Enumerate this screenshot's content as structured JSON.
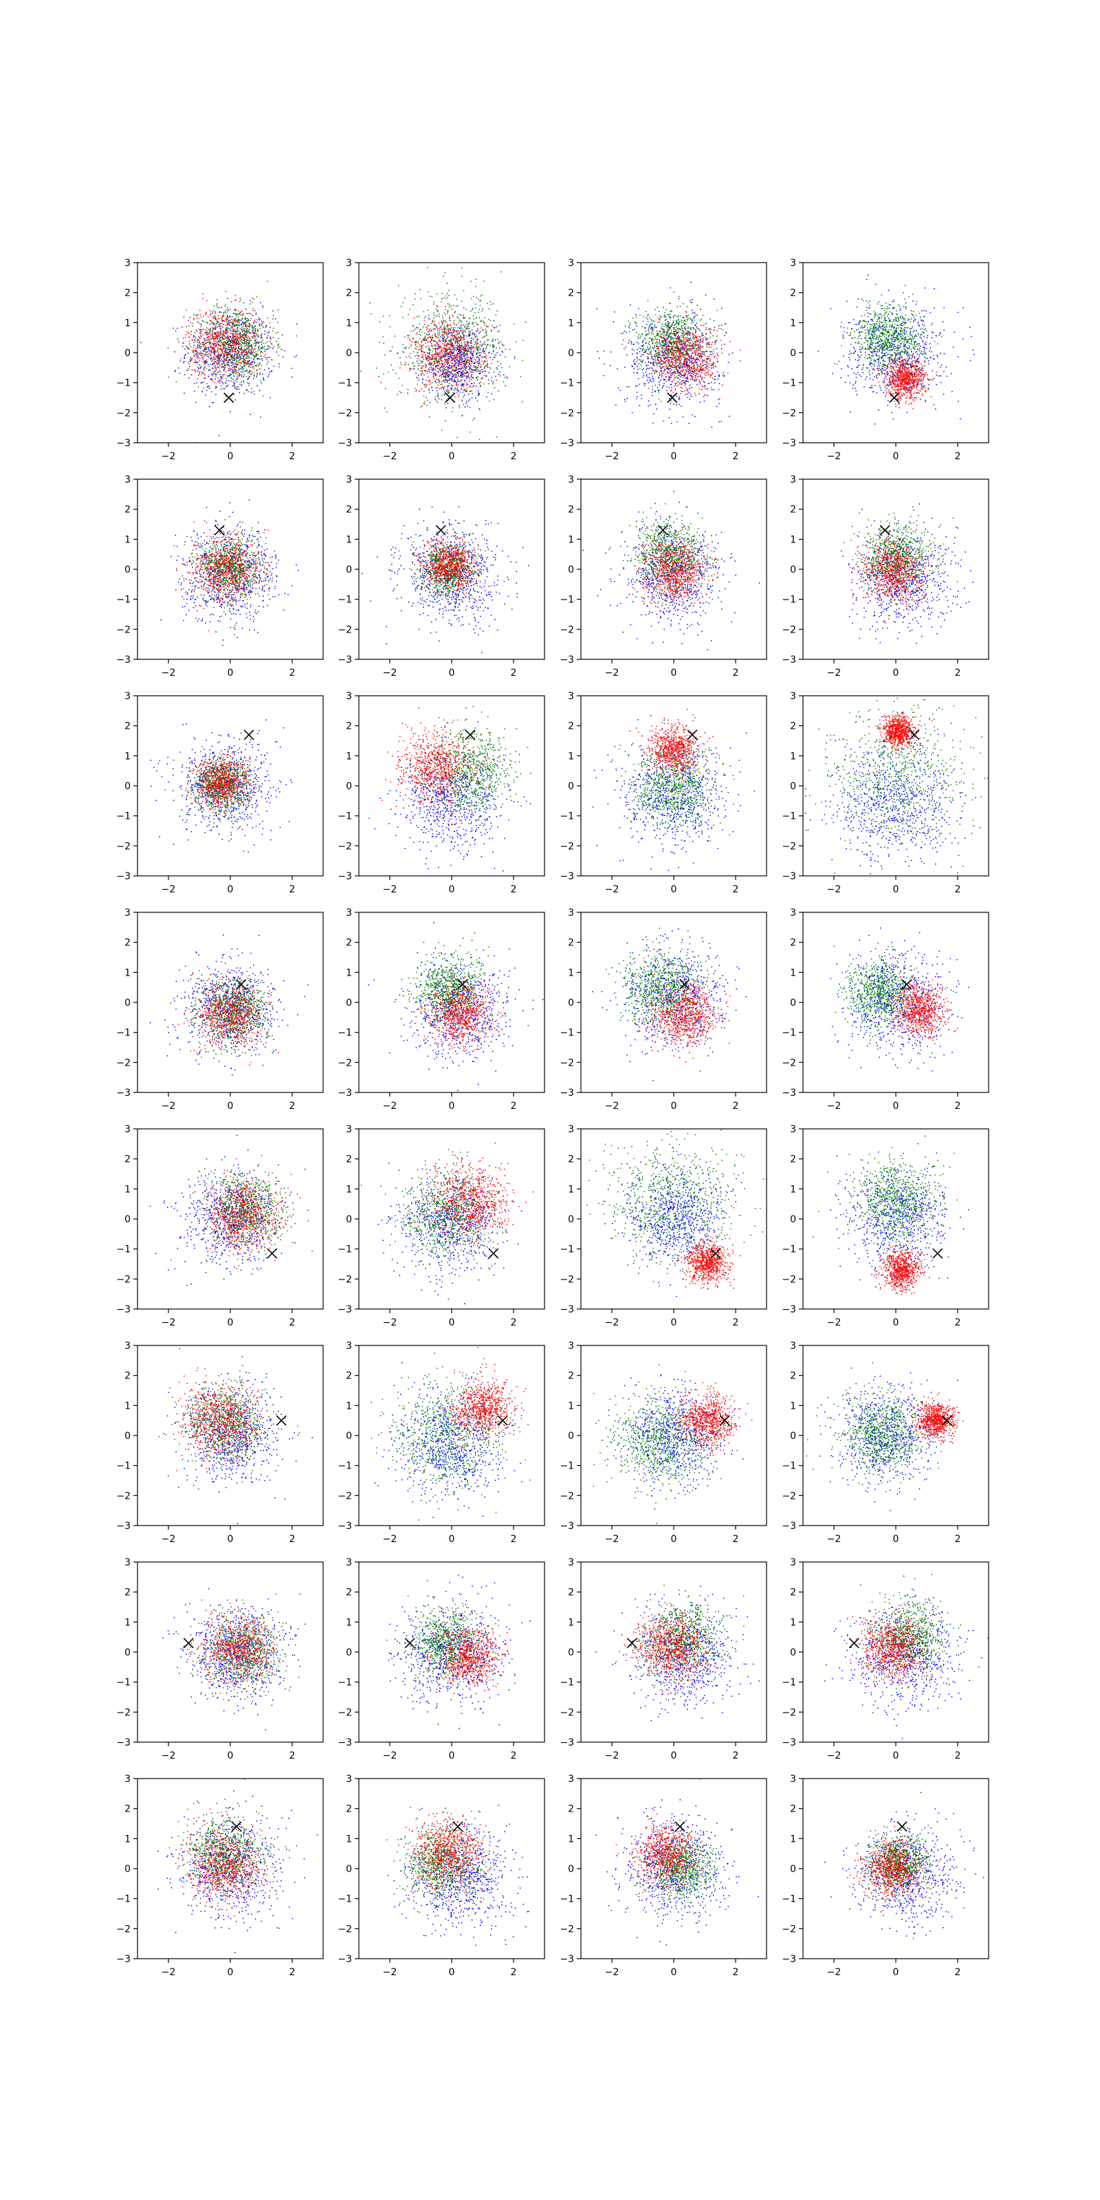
{
  "figure": {
    "layout": "8 rows x 4 columns grid of scatter subplots",
    "background": "#ffffff",
    "colors": {
      "blue": "#0000ff",
      "green": "#008000",
      "red": "#ff0000",
      "marker": "#000000",
      "axes": "#000000"
    }
  },
  "axes_common": {
    "xlim": [
      -3,
      3
    ],
    "ylim": [
      -3,
      3
    ],
    "xticks": [
      -2,
      0,
      2
    ],
    "yticks": [
      -3,
      -2,
      -1,
      0,
      1,
      2,
      3
    ],
    "xtick_labels": [
      "−2",
      "0",
      "2"
    ],
    "ytick_labels": [
      "−3",
      "−2",
      "−1",
      "0",
      "1",
      "2",
      "3"
    ],
    "grid": false
  },
  "chart_data": [
    {
      "type": "scatter",
      "row": 0,
      "col": 0,
      "marker": [
        -0.05,
        -1.5
      ],
      "blue": {
        "cx": 0.0,
        "cy": 0.0,
        "r": 1.3
      },
      "green": {
        "cx": 0.2,
        "cy": 0.3,
        "r": 1.1
      },
      "red": {
        "cx": -0.2,
        "cy": 0.3,
        "r": 1.1
      }
    },
    {
      "type": "scatter",
      "row": 0,
      "col": 1,
      "marker": [
        -0.05,
        -1.5
      ],
      "blue": {
        "cx": 0.2,
        "cy": -0.3,
        "r": 1.1
      },
      "green": {
        "cx": 0.0,
        "cy": 0.2,
        "r": 1.6
      },
      "red": {
        "cx": -0.1,
        "cy": -0.1,
        "r": 1.1
      }
    },
    {
      "type": "scatter",
      "row": 0,
      "col": 2,
      "marker": [
        -0.05,
        -1.5
      ],
      "blue": {
        "cx": 0.0,
        "cy": -0.2,
        "r": 1.4
      },
      "green": {
        "cx": -0.1,
        "cy": 0.4,
        "r": 1.0
      },
      "red": {
        "cx": 0.4,
        "cy": -0.2,
        "r": 1.0
      }
    },
    {
      "type": "scatter",
      "row": 0,
      "col": 3,
      "marker": [
        -0.05,
        -1.5
      ],
      "blue": {
        "cx": 0.0,
        "cy": 0.0,
        "r": 1.4
      },
      "green": {
        "cx": -0.2,
        "cy": 0.5,
        "r": 1.0
      },
      "red": {
        "cx": 0.3,
        "cy": -0.9,
        "r": 0.6
      }
    },
    {
      "type": "scatter",
      "row": 1,
      "col": 0,
      "marker": [
        -0.35,
        1.3
      ],
      "blue": {
        "cx": 0.0,
        "cy": -0.2,
        "r": 1.4
      },
      "green": {
        "cx": 0.0,
        "cy": 0.1,
        "r": 0.9
      },
      "red": {
        "cx": -0.1,
        "cy": 0.0,
        "r": 1.0
      }
    },
    {
      "type": "scatter",
      "row": 1,
      "col": 1,
      "marker": [
        -0.35,
        1.3
      ],
      "blue": {
        "cx": 0.0,
        "cy": -0.2,
        "r": 1.5
      },
      "green": {
        "cx": -0.1,
        "cy": 0.0,
        "r": 0.8
      },
      "red": {
        "cx": -0.1,
        "cy": 0.1,
        "r": 0.8
      }
    },
    {
      "type": "scatter",
      "row": 1,
      "col": 2,
      "marker": [
        -0.35,
        1.3
      ],
      "blue": {
        "cx": 0.0,
        "cy": -0.2,
        "r": 1.5
      },
      "green": {
        "cx": -0.1,
        "cy": 0.5,
        "r": 1.0
      },
      "red": {
        "cx": 0.0,
        "cy": -0.1,
        "r": 0.9
      }
    },
    {
      "type": "scatter",
      "row": 1,
      "col": 3,
      "marker": [
        -0.35,
        1.3
      ],
      "blue": {
        "cx": 0.3,
        "cy": -0.3,
        "r": 1.5
      },
      "green": {
        "cx": 0.0,
        "cy": 0.4,
        "r": 1.0
      },
      "red": {
        "cx": -0.1,
        "cy": -0.1,
        "r": 0.9
      }
    },
    {
      "type": "scatter",
      "row": 2,
      "col": 0,
      "marker": [
        0.6,
        1.7
      ],
      "blue": {
        "cx": -0.2,
        "cy": 0.0,
        "r": 1.4
      },
      "green": {
        "cx": -0.3,
        "cy": 0.0,
        "r": 0.8
      },
      "red": {
        "cx": -0.3,
        "cy": 0.1,
        "r": 0.8
      }
    },
    {
      "type": "scatter",
      "row": 2,
      "col": 1,
      "marker": [
        0.6,
        1.7
      ],
      "blue": {
        "cx": 0.0,
        "cy": -0.5,
        "r": 1.5
      },
      "green": {
        "cx": 0.6,
        "cy": 0.5,
        "r": 1.2
      },
      "red": {
        "cx": -0.5,
        "cy": 0.6,
        "r": 1.1
      }
    },
    {
      "type": "scatter",
      "row": 2,
      "col": 2,
      "marker": [
        0.6,
        1.7
      ],
      "blue": {
        "cx": 0.0,
        "cy": -0.3,
        "r": 1.5
      },
      "green": {
        "cx": 0.0,
        "cy": 0.0,
        "r": 1.2
      },
      "red": {
        "cx": 0.0,
        "cy": 1.2,
        "r": 0.7
      }
    },
    {
      "type": "scatter",
      "row": 2,
      "col": 3,
      "marker": [
        0.6,
        1.7
      ],
      "blue": {
        "cx": 0.0,
        "cy": -0.6,
        "r": 1.8
      },
      "green": {
        "cx": 0.0,
        "cy": 0.3,
        "r": 2.0
      },
      "red": {
        "cx": 0.1,
        "cy": 1.8,
        "r": 0.45
      }
    },
    {
      "type": "scatter",
      "row": 3,
      "col": 0,
      "marker": [
        0.35,
        0.6
      ],
      "blue": {
        "cx": 0.0,
        "cy": -0.2,
        "r": 1.4
      },
      "green": {
        "cx": 0.1,
        "cy": -0.3,
        "r": 1.0
      },
      "red": {
        "cx": 0.0,
        "cy": -0.4,
        "r": 1.0
      }
    },
    {
      "type": "scatter",
      "row": 3,
      "col": 1,
      "marker": [
        0.35,
        0.6
      ],
      "blue": {
        "cx": 0.3,
        "cy": -0.2,
        "r": 1.5
      },
      "green": {
        "cx": -0.1,
        "cy": 0.4,
        "r": 1.0
      },
      "red": {
        "cx": 0.3,
        "cy": -0.4,
        "r": 0.9
      }
    },
    {
      "type": "scatter",
      "row": 3,
      "col": 2,
      "marker": [
        0.35,
        0.6
      ],
      "blue": {
        "cx": 0.0,
        "cy": 0.2,
        "r": 1.5
      },
      "green": {
        "cx": -0.4,
        "cy": 0.5,
        "r": 1.1
      },
      "red": {
        "cx": 0.4,
        "cy": -0.4,
        "r": 0.9
      }
    },
    {
      "type": "scatter",
      "row": 3,
      "col": 3,
      "marker": [
        0.35,
        0.6
      ],
      "blue": {
        "cx": 0.0,
        "cy": 0.0,
        "r": 1.5
      },
      "green": {
        "cx": -0.5,
        "cy": 0.3,
        "r": 1.0
      },
      "red": {
        "cx": 0.8,
        "cy": -0.3,
        "r": 0.7
      }
    },
    {
      "type": "scatter",
      "row": 4,
      "col": 0,
      "marker": [
        1.35,
        -1.15
      ],
      "blue": {
        "cx": 0.0,
        "cy": 0.0,
        "r": 1.4
      },
      "green": {
        "cx": 0.5,
        "cy": 0.3,
        "r": 1.1
      },
      "red": {
        "cx": 0.4,
        "cy": 0.1,
        "r": 1.1
      }
    },
    {
      "type": "scatter",
      "row": 4,
      "col": 1,
      "marker": [
        1.35,
        -1.15
      ],
      "blue": {
        "cx": 0.0,
        "cy": -0.2,
        "r": 1.5
      },
      "green": {
        "cx": -0.2,
        "cy": 0.1,
        "r": 1.3
      },
      "red": {
        "cx": 0.6,
        "cy": 0.6,
        "r": 1.1
      }
    },
    {
      "type": "scatter",
      "row": 4,
      "col": 2,
      "marker": [
        1.35,
        -1.15
      ],
      "blue": {
        "cx": 0.0,
        "cy": 0.0,
        "r": 1.4
      },
      "green": {
        "cx": 0.0,
        "cy": 0.6,
        "r": 1.8
      },
      "red": {
        "cx": 1.1,
        "cy": -1.5,
        "r": 0.6
      }
    },
    {
      "type": "scatter",
      "row": 4,
      "col": 3,
      "marker": [
        1.35,
        -1.15
      ],
      "blue": {
        "cx": 0.0,
        "cy": 0.0,
        "r": 1.5
      },
      "green": {
        "cx": 0.0,
        "cy": 0.6,
        "r": 1.2
      },
      "red": {
        "cx": 0.2,
        "cy": -1.7,
        "r": 0.55
      }
    },
    {
      "type": "scatter",
      "row": 5,
      "col": 0,
      "marker": [
        1.65,
        0.5
      ],
      "blue": {
        "cx": 0.0,
        "cy": 0.0,
        "r": 1.4
      },
      "green": {
        "cx": -0.2,
        "cy": 0.4,
        "r": 1.2
      },
      "red": {
        "cx": -0.3,
        "cy": 0.5,
        "r": 1.1
      }
    },
    {
      "type": "scatter",
      "row": 5,
      "col": 1,
      "marker": [
        1.65,
        0.5
      ],
      "blue": {
        "cx": 0.0,
        "cy": -0.3,
        "r": 1.5
      },
      "green": {
        "cx": -0.2,
        "cy": 0.0,
        "r": 1.6
      },
      "red": {
        "cx": 1.0,
        "cy": 0.9,
        "r": 0.85
      }
    },
    {
      "type": "scatter",
      "row": 5,
      "col": 2,
      "marker": [
        1.65,
        0.5
      ],
      "blue": {
        "cx": 0.0,
        "cy": 0.0,
        "r": 1.4
      },
      "green": {
        "cx": -0.4,
        "cy": -0.2,
        "r": 1.4
      },
      "red": {
        "cx": 1.1,
        "cy": 0.5,
        "r": 0.8
      }
    },
    {
      "type": "scatter",
      "row": 5,
      "col": 3,
      "marker": [
        1.65,
        0.5
      ],
      "blue": {
        "cx": -0.3,
        "cy": 0.0,
        "r": 1.4
      },
      "green": {
        "cx": -0.5,
        "cy": 0.1,
        "r": 1.2
      },
      "red": {
        "cx": 1.3,
        "cy": 0.5,
        "r": 0.55
      }
    },
    {
      "type": "scatter",
      "row": 6,
      "col": 0,
      "marker": [
        -1.35,
        0.3
      ],
      "blue": {
        "cx": 0.2,
        "cy": 0.0,
        "r": 1.4
      },
      "green": {
        "cx": 0.4,
        "cy": 0.0,
        "r": 1.1
      },
      "red": {
        "cx": 0.3,
        "cy": 0.1,
        "r": 1.1
      }
    },
    {
      "type": "scatter",
      "row": 6,
      "col": 1,
      "marker": [
        -1.35,
        0.3
      ],
      "blue": {
        "cx": 0.0,
        "cy": 0.0,
        "r": 1.5
      },
      "green": {
        "cx": -0.2,
        "cy": 0.3,
        "r": 1.1
      },
      "red": {
        "cx": 0.6,
        "cy": -0.2,
        "r": 0.9
      }
    },
    {
      "type": "scatter",
      "row": 6,
      "col": 2,
      "marker": [
        -1.35,
        0.3
      ],
      "blue": {
        "cx": 0.3,
        "cy": -0.1,
        "r": 1.5
      },
      "green": {
        "cx": 0.3,
        "cy": 0.4,
        "r": 1.1
      },
      "red": {
        "cx": -0.1,
        "cy": 0.2,
        "r": 1.0
      }
    },
    {
      "type": "scatter",
      "row": 6,
      "col": 3,
      "marker": [
        -1.35,
        0.3
      ],
      "blue": {
        "cx": 0.3,
        "cy": -0.1,
        "r": 1.5
      },
      "green": {
        "cx": 0.4,
        "cy": 0.5,
        "r": 1.1
      },
      "red": {
        "cx": -0.1,
        "cy": 0.1,
        "r": 0.9
      }
    },
    {
      "type": "scatter",
      "row": 7,
      "col": 0,
      "marker": [
        0.2,
        1.4
      ],
      "blue": {
        "cx": 0.0,
        "cy": 0.0,
        "r": 1.5
      },
      "green": {
        "cx": -0.2,
        "cy": 0.5,
        "r": 1.1
      },
      "red": {
        "cx": -0.2,
        "cy": 0.1,
        "r": 1.1
      }
    },
    {
      "type": "scatter",
      "row": 7,
      "col": 1,
      "marker": [
        0.2,
        1.4
      ],
      "blue": {
        "cx": 0.3,
        "cy": -0.4,
        "r": 1.5
      },
      "green": {
        "cx": -0.3,
        "cy": 0.2,
        "r": 1.1
      },
      "red": {
        "cx": -0.1,
        "cy": 0.5,
        "r": 1.0
      }
    },
    {
      "type": "scatter",
      "row": 7,
      "col": 2,
      "marker": [
        0.2,
        1.4
      ],
      "blue": {
        "cx": 0.0,
        "cy": 0.0,
        "r": 1.5
      },
      "green": {
        "cx": 0.2,
        "cy": 0.0,
        "r": 0.9
      },
      "red": {
        "cx": -0.2,
        "cy": 0.5,
        "r": 0.9
      }
    },
    {
      "type": "scatter",
      "row": 7,
      "col": 3,
      "marker": [
        0.2,
        1.4
      ],
      "blue": {
        "cx": 0.3,
        "cy": -0.2,
        "r": 1.5
      },
      "green": {
        "cx": 0.1,
        "cy": 0.2,
        "r": 0.8
      },
      "red": {
        "cx": -0.1,
        "cy": 0.0,
        "r": 0.8
      }
    }
  ]
}
